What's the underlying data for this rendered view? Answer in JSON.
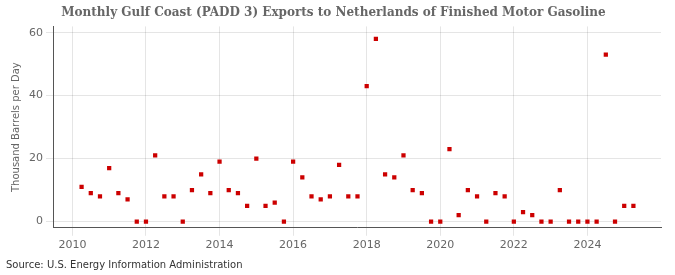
{
  "chart_data": {
    "type": "scatter",
    "title": "Monthly Gulf Coast (PADD 3) Exports to Netherlands of Finished Motor Gasoline",
    "ylabel": "Thousand Barrels per Day",
    "annotations": [
      "Source: U.S. Energy Information Administration"
    ],
    "color": "#cc0000",
    "marker": "square",
    "grid": true,
    "xlim": [
      2009.5,
      2026.0
    ],
    "ylim": [
      -2,
      62
    ],
    "xticks": [
      2010,
      2012,
      2014,
      2016,
      2018,
      2020,
      2022,
      2024
    ],
    "yticks": [
      0,
      20,
      40,
      60
    ],
    "x": [
      2010.25,
      2010.5,
      2010.75,
      2011.0,
      2011.25,
      2011.5,
      2011.75,
      2012.0,
      2012.25,
      2012.5,
      2012.75,
      2013.0,
      2013.25,
      2013.5,
      2013.75,
      2014.0,
      2014.25,
      2014.5,
      2014.75,
      2015.0,
      2015.25,
      2015.5,
      2015.75,
      2016.0,
      2016.25,
      2016.5,
      2016.75,
      2017.0,
      2017.25,
      2017.5,
      2017.75,
      2018.0,
      2018.25,
      2018.5,
      2018.75,
      2019.0,
      2019.25,
      2019.5,
      2019.75,
      2020.0,
      2020.25,
      2020.5,
      2020.75,
      2021.0,
      2021.25,
      2021.5,
      2021.75,
      2022.0,
      2022.25,
      2022.5,
      2022.75,
      2023.0,
      2023.25,
      2023.5,
      2023.75,
      2024.0,
      2024.25,
      2024.5,
      2024.75,
      2025.0,
      2025.25
    ],
    "values": [
      11,
      9,
      8,
      17,
      9,
      7,
      0,
      0,
      21,
      8,
      8,
      0,
      10,
      15,
      9,
      19,
      10,
      9,
      5,
      20,
      5,
      6,
      0,
      19,
      14,
      8,
      7,
      8,
      18,
      8,
      8,
      43,
      58,
      15,
      14,
      21,
      10,
      9,
      0,
      0,
      23,
      2,
      10,
      8,
      0,
      9,
      8,
      0,
      3,
      2,
      0,
      0,
      10,
      0,
      0,
      0,
      0,
      53,
      0,
      5,
      5
    ]
  }
}
